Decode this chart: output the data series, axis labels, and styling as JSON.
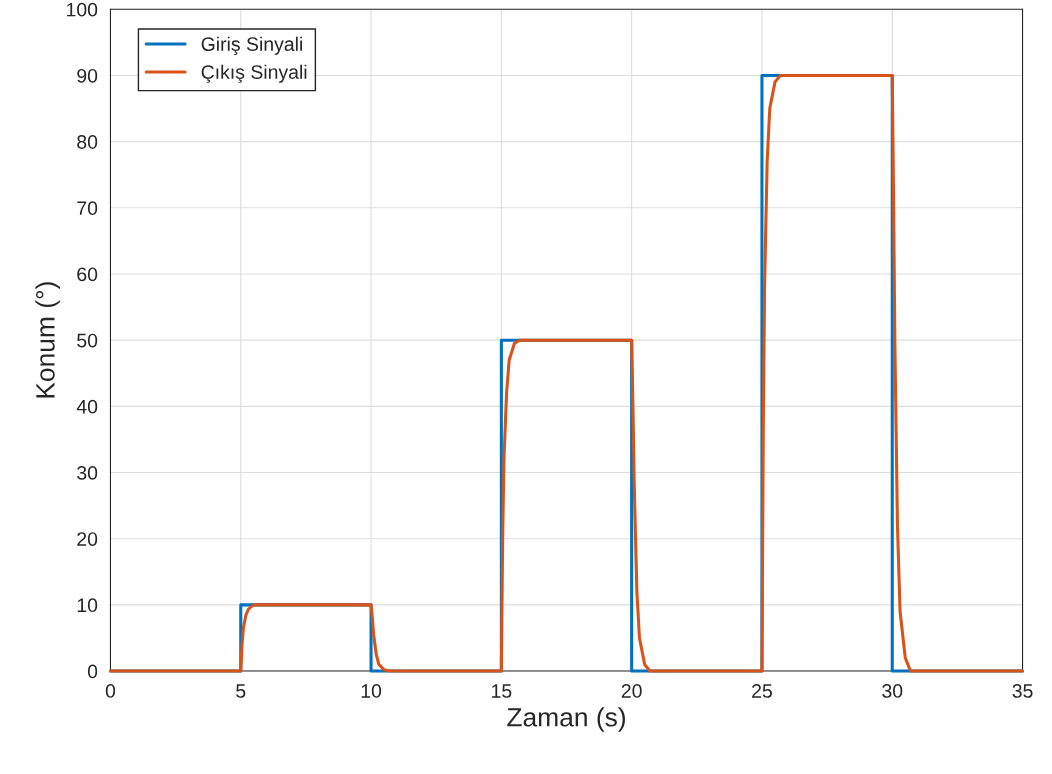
{
  "chart_data": {
    "type": "line",
    "xlabel": "Zaman (s)",
    "ylabel": "Konum (°)",
    "xlim": [
      0,
      35
    ],
    "ylim": [
      0,
      100
    ],
    "xticks": [
      0,
      5,
      10,
      15,
      20,
      25,
      30,
      35
    ],
    "yticks": [
      0,
      10,
      20,
      30,
      40,
      50,
      60,
      70,
      80,
      90,
      100
    ],
    "grid": true,
    "legend": "top left",
    "line_style": "solid",
    "marker": "none",
    "series": [
      {
        "name": "Giriş Sinyali",
        "color": "#0072bd",
        "x": [
          0,
          5,
          5,
          10,
          10,
          15,
          15,
          20,
          20,
          25,
          25,
          30,
          30,
          35
        ],
        "values": [
          0,
          0,
          10,
          10,
          0,
          0,
          50,
          50,
          0,
          0,
          90,
          90,
          0,
          0
        ]
      },
      {
        "name": "Çıkış Sinyali",
        "color": "#d95319",
        "x": [
          0,
          5,
          5.05,
          5.1,
          5.2,
          5.3,
          5.5,
          10,
          10.05,
          10.1,
          10.2,
          10.3,
          10.5,
          10.7,
          15,
          15.05,
          15.1,
          15.2,
          15.3,
          15.5,
          15.7,
          20,
          20.05,
          20.1,
          20.2,
          20.3,
          20.5,
          20.7,
          25,
          25.05,
          25.1,
          25.2,
          25.3,
          25.5,
          25.7,
          30,
          30.05,
          30.1,
          30.2,
          30.3,
          30.5,
          30.7,
          35
        ],
        "values": [
          0,
          0,
          4,
          6.5,
          8.5,
          9.4,
          10,
          10,
          8,
          5.5,
          2.5,
          1,
          0.2,
          0,
          0,
          20,
          32,
          42,
          47,
          49.5,
          50,
          50,
          40,
          28,
          12,
          5,
          1,
          0,
          0,
          36,
          58,
          77,
          85,
          89,
          90,
          90,
          72,
          50,
          22,
          9,
          2,
          0,
          0
        ]
      }
    ]
  }
}
